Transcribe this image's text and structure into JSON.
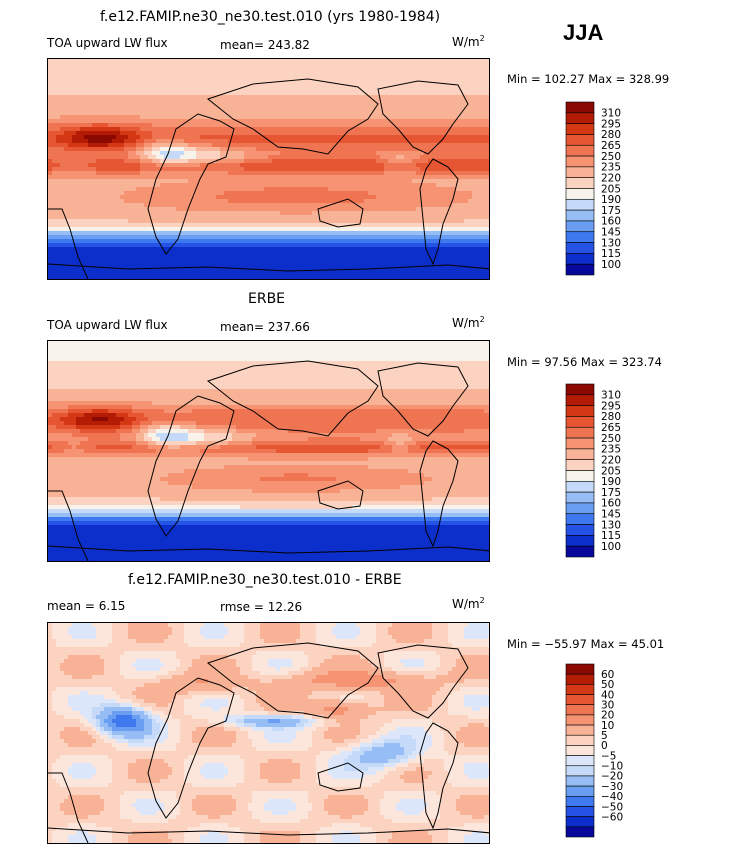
{
  "season": "JJA",
  "colors": {
    "abs_scale": [
      "#08089a",
      "#0c2fcb",
      "#2453e6",
      "#3f79ef",
      "#6a9ef3",
      "#97bdf5",
      "#c5daf8",
      "#f8f3ea",
      "#fcd3c0",
      "#f8b295",
      "#f59373",
      "#ef7552",
      "#e65632",
      "#d33714",
      "#b31b05",
      "#8a0a02"
    ],
    "diff_scale": [
      "#08089a",
      "#0c2fcb",
      "#2453e6",
      "#3f79ef",
      "#6a9ef3",
      "#97bdf5",
      "#c5daf8",
      "#dbe6fa",
      "#fce6dc",
      "#fcd3c0",
      "#f8b295",
      "#f59373",
      "#ef7552",
      "#e65632",
      "#d33714",
      "#b31b05",
      "#8a0a02"
    ]
  },
  "panels": [
    {
      "title": "f.e12.FAMIP.ne30_ne30.test.010 (yrs 1980-1984)",
      "left_label": "TOA upward LW flux",
      "stat_label": "mean=",
      "stat_value": "243.82",
      "units": "W/m",
      "units_sup": "2",
      "minmax": "Min = 102.27 Max = 328.99"
    },
    {
      "title": "ERBE",
      "left_label": "TOA upward LW flux",
      "stat_label": "mean=",
      "stat_value": "237.66",
      "units": "W/m",
      "units_sup": "2",
      "minmax": "Min =  97.56 Max = 323.74"
    },
    {
      "title": "f.e12.FAMIP.ne30_ne30.test.010 - ERBE",
      "left_label": "mean =    6.15",
      "stat_label": "rmse =",
      "stat_value": "12.26",
      "units": "W/m",
      "units_sup": "2",
      "minmax": "Min = −55.97 Max =  45.01"
    }
  ],
  "chart_data": [
    {
      "type": "heatmap",
      "title": "f.e12.FAMIP.ne30_ne30.test.010 (yrs 1980-1984)",
      "variable": "TOA upward LW flux",
      "units": "W/m2",
      "mean": 243.82,
      "min": 102.27,
      "max": 328.99,
      "colorbar_levels": [
        "310",
        "295",
        "280",
        "265",
        "250",
        "235",
        "220",
        "205",
        "190",
        "175",
        "160",
        "145",
        "130",
        "115",
        "100"
      ]
    },
    {
      "type": "heatmap",
      "title": "ERBE",
      "variable": "TOA upward LW flux",
      "units": "W/m2",
      "mean": 237.66,
      "min": 97.56,
      "max": 323.74,
      "colorbar_levels": [
        "310",
        "295",
        "280",
        "265",
        "250",
        "235",
        "220",
        "205",
        "190",
        "175",
        "160",
        "145",
        "130",
        "115",
        "100"
      ]
    },
    {
      "type": "heatmap",
      "title": "f.e12.FAMIP.ne30_ne30.test.010 - ERBE",
      "units": "W/m2",
      "mean": 6.15,
      "rmse": 12.26,
      "min": -55.97,
      "max": 45.01,
      "colorbar_levels": [
        "60",
        "50",
        "40",
        "30",
        "20",
        "10",
        "5",
        "0",
        "−5",
        "−10",
        "−20",
        "−30",
        "−40",
        "−50",
        "−60"
      ]
    }
  ]
}
